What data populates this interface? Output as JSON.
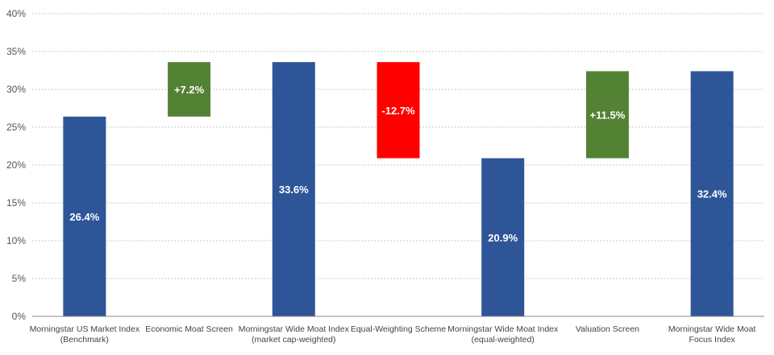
{
  "chart_data": {
    "type": "bar",
    "subtype": "waterfall",
    "title": "",
    "xlabel": "",
    "ylabel": "",
    "ylim": [
      0,
      40
    ],
    "yticks": [
      0,
      5,
      10,
      15,
      20,
      25,
      30,
      35,
      40
    ],
    "ytick_labels": [
      "0%",
      "5%",
      "10%",
      "15%",
      "20%",
      "25%",
      "30%",
      "35%",
      "40%"
    ],
    "grid": true,
    "colors": {
      "total": "#2e5597",
      "increase": "#548235",
      "decrease": "#ff0000"
    },
    "bars": [
      {
        "category": [
          "Morningstar US Market Index",
          "(Benchmark)"
        ],
        "kind": "total",
        "base": 0,
        "top": 26.4,
        "label": "26.4%"
      },
      {
        "category": [
          "Economic Moat Screen"
        ],
        "kind": "increase",
        "base": 26.4,
        "top": 33.6,
        "label": "+7.2%"
      },
      {
        "category": [
          "Morningstar Wide Moat Index",
          "(market cap-weighted)"
        ],
        "kind": "total",
        "base": 0,
        "top": 33.6,
        "label": "33.6%"
      },
      {
        "category": [
          "Equal-Weighting Scheme"
        ],
        "kind": "decrease",
        "base": 20.9,
        "top": 33.6,
        "label": "-12.7%"
      },
      {
        "category": [
          "Morningstar Wide Moat Index",
          "(equal-weighted)"
        ],
        "kind": "total",
        "base": 0,
        "top": 20.9,
        "label": "20.9%"
      },
      {
        "category": [
          "Valuation Screen"
        ],
        "kind": "increase",
        "base": 20.9,
        "top": 32.4,
        "label": "+11.5%"
      },
      {
        "category": [
          "Morningstar Wide Moat",
          "Focus Index"
        ],
        "kind": "total",
        "base": 0,
        "top": 32.4,
        "label": "32.4%"
      }
    ]
  }
}
